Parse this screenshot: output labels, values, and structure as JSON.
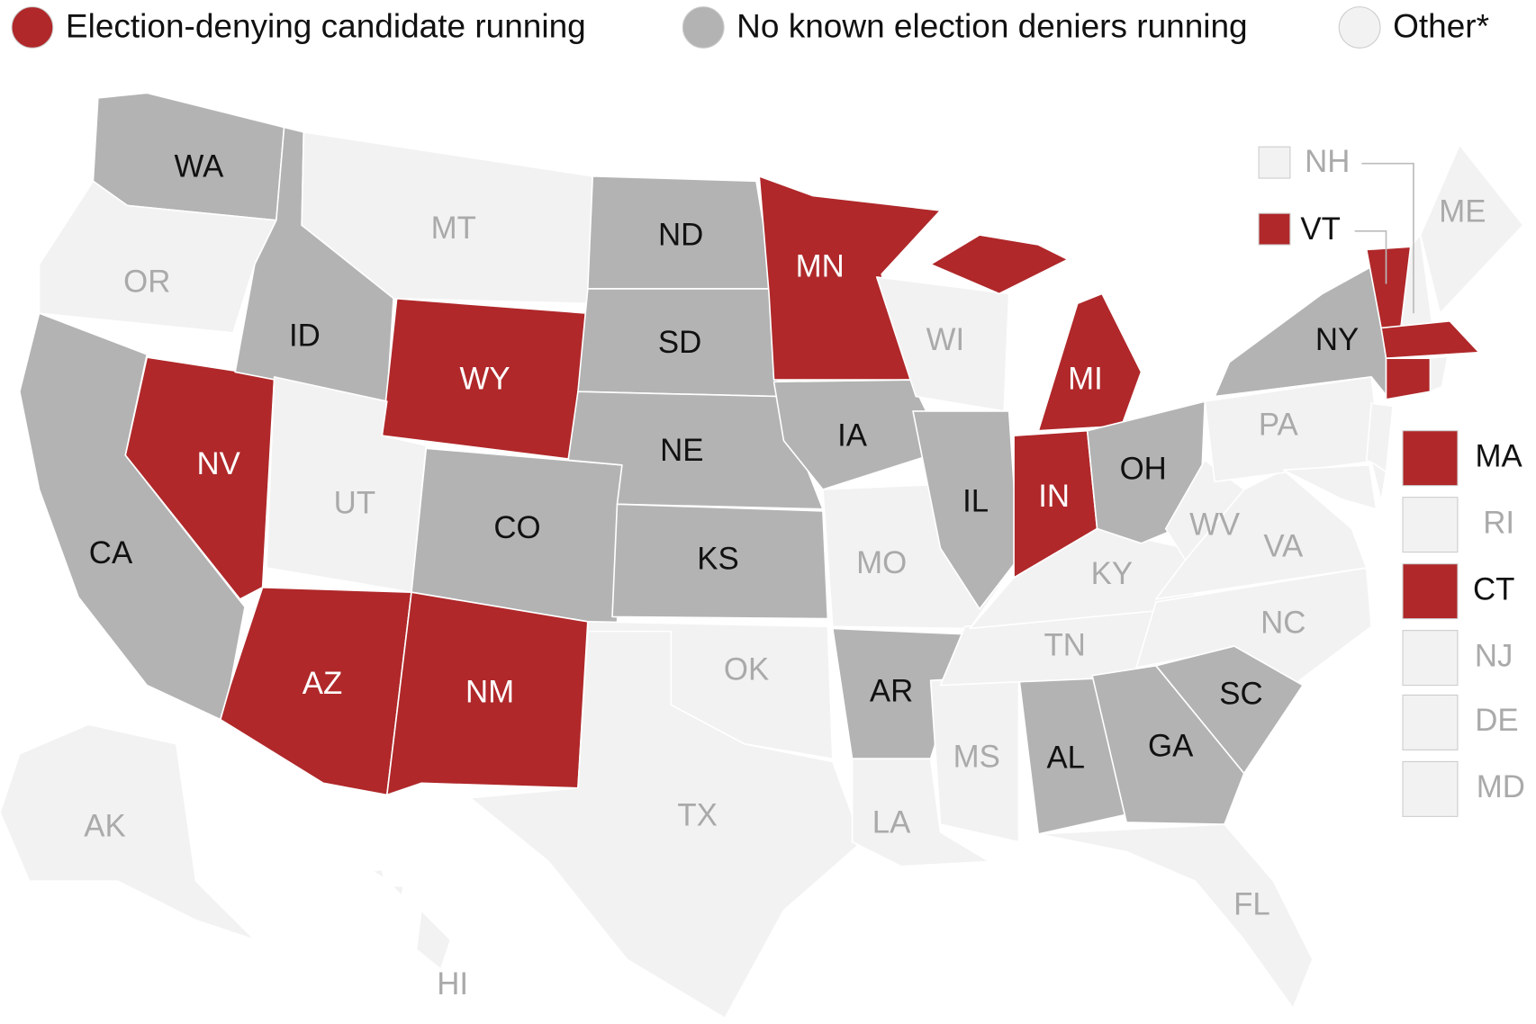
{
  "map": {
    "legend": [
      {
        "name": "Election-denying candidate running",
        "color": "#b0282a",
        "text_color": "#ffffff"
      },
      {
        "name": "No known election deniers running",
        "color": "#b3b3b3",
        "text_color": "#111111"
      },
      {
        "name": "Other*",
        "color": "#f2f2f2",
        "text_color": "#aaaaaa"
      }
    ],
    "states": [
      {
        "label": "WA",
        "group": 1
      },
      {
        "label": "OR",
        "group": 2
      },
      {
        "label": "CA",
        "group": 1
      },
      {
        "label": "NV",
        "group": 0
      },
      {
        "label": "ID",
        "group": 1
      },
      {
        "label": "MT",
        "group": 2
      },
      {
        "label": "WY",
        "group": 0
      },
      {
        "label": "UT",
        "group": 2
      },
      {
        "label": "CO",
        "group": 1
      },
      {
        "label": "AZ",
        "group": 0
      },
      {
        "label": "NM",
        "group": 0
      },
      {
        "label": "ND",
        "group": 1
      },
      {
        "label": "SD",
        "group": 1
      },
      {
        "label": "NE",
        "group": 1
      },
      {
        "label": "KS",
        "group": 1
      },
      {
        "label": "OK",
        "group": 2
      },
      {
        "label": "TX",
        "group": 2
      },
      {
        "label": "MN",
        "group": 0
      },
      {
        "label": "IA",
        "group": 1
      },
      {
        "label": "MO",
        "group": 2
      },
      {
        "label": "AR",
        "group": 1
      },
      {
        "label": "LA",
        "group": 2
      },
      {
        "label": "WI",
        "group": 2
      },
      {
        "label": "IL",
        "group": 1
      },
      {
        "label": "MS",
        "group": 2
      },
      {
        "label": "AL",
        "group": 1
      },
      {
        "label": "TN",
        "group": 2
      },
      {
        "label": "KY",
        "group": 2
      },
      {
        "label": "IN",
        "group": 0
      },
      {
        "label": "MI",
        "group": 0
      },
      {
        "label": "OH",
        "group": 1
      },
      {
        "label": "WV",
        "group": 2
      },
      {
        "label": "VA",
        "group": 2
      },
      {
        "label": "NC",
        "group": 2
      },
      {
        "label": "SC",
        "group": 1
      },
      {
        "label": "GA",
        "group": 1
      },
      {
        "label": "FL",
        "group": 2
      },
      {
        "label": "PA",
        "group": 2
      },
      {
        "label": "NY",
        "group": 1
      },
      {
        "label": "ME",
        "group": 2
      },
      {
        "label": "AK",
        "group": 2
      },
      {
        "label": "HI",
        "group": 2
      },
      {
        "label": "NH",
        "group": 2
      },
      {
        "label": "VT",
        "group": 0
      },
      {
        "label": "MA",
        "group": 0
      },
      {
        "label": "RI",
        "group": 2
      },
      {
        "label": "CT",
        "group": 0
      },
      {
        "label": "NJ",
        "group": 2
      },
      {
        "label": "DE",
        "group": 2
      },
      {
        "label": "MD",
        "group": 2
      }
    ]
  }
}
